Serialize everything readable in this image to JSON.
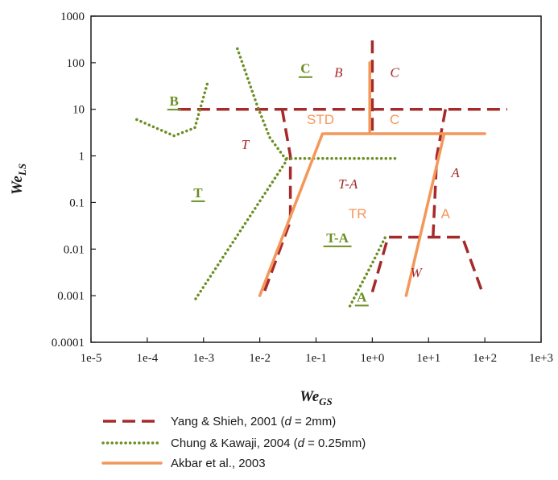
{
  "chart_data": {
    "type": "line",
    "xlabel": "We",
    "xlabel_sub": "GS",
    "ylabel": "We",
    "ylabel_sub": "LS",
    "xscale": "log",
    "yscale": "log",
    "xlim": [
      1e-05,
      1000
    ],
    "ylim": [
      0.0001,
      1000
    ],
    "x_ticks": [
      "1e-5",
      "1e-4",
      "1e-3",
      "1e-2",
      "1e-1",
      "1e+0",
      "1e+1",
      "1e+2",
      "1e+3"
    ],
    "y_ticks": [
      "0.0001",
      "0.001",
      "0.01",
      "0.1",
      "1",
      "10",
      "100",
      "1000"
    ],
    "grid": false,
    "legend_position": "bottom",
    "colors": {
      "yang": "#a52a2a",
      "chung": "#6b8e23",
      "akbar": "#f4975a",
      "axis": "#1a1a1a"
    },
    "series": [
      {
        "name": "Yang & Shieh, 2001 (d = 2mm)",
        "style": "dashed",
        "segments": [
          [
            [
              0.00035,
              10
            ],
            [
              250,
              10
            ]
          ],
          [
            [
              1.0,
              300
            ],
            [
              1.0,
              3
            ]
          ],
          [
            [
              0.025,
              10
            ],
            [
              0.035,
              1
            ],
            [
              0.035,
              0.04
            ],
            [
              0.012,
              0.0012
            ]
          ],
          [
            [
              20,
              10
            ],
            [
              14,
              1
            ],
            [
              12,
              0.018
            ]
          ],
          [
            [
              1.0,
              0.0012
            ],
            [
              1.9,
              0.018
            ],
            [
              40,
              0.018
            ],
            [
              90,
              0.0012
            ]
          ]
        ]
      },
      {
        "name": "Chung & Kawaji, 2004 (d = 0.25mm)",
        "style": "dotted",
        "segments": [
          [
            [
              6.5e-05,
              6
            ],
            [
              0.0003,
              2.7
            ],
            [
              0.0007,
              4
            ],
            [
              0.0012,
              40
            ]
          ],
          [
            [
              0.004,
              200
            ],
            [
              0.009,
              12
            ],
            [
              0.015,
              2.5
            ],
            [
              0.03,
              0.8
            ],
            [
              0.0007,
              0.0008
            ]
          ],
          [
            [
              0.03,
              0.88
            ],
            [
              0.06,
              0.88
            ],
            [
              3.0,
              0.88
            ]
          ],
          [
            [
              0.4,
              0.0006
            ],
            [
              1.0,
              0.005
            ],
            [
              1.7,
              0.018
            ]
          ]
        ]
      },
      {
        "name": "Akbar et al., 2003",
        "style": "solid",
        "segments": [
          [
            [
              0.9,
              100
            ],
            [
              0.9,
              3
            ]
          ],
          [
            [
              0.14,
              3
            ],
            [
              100,
              3
            ]
          ],
          [
            [
              0.13,
              3
            ],
            [
              0.01,
              0.001
            ]
          ],
          [
            [
              19,
              3
            ],
            [
              4,
              0.001
            ]
          ]
        ]
      }
    ],
    "region_labels": [
      {
        "text": "B",
        "x": 0.0003,
        "y": 12,
        "series": "chung",
        "underline": true
      },
      {
        "text": "C",
        "x": 0.065,
        "y": 60,
        "series": "chung",
        "underline": true
      },
      {
        "text": "T",
        "x": 0.0008,
        "y": 0.13,
        "series": "chung",
        "underline": true
      },
      {
        "text": "T-A",
        "x": 0.24,
        "y": 0.014,
        "series": "chung",
        "underline": true
      },
      {
        "text": "A",
        "x": 0.65,
        "y": 0.00075,
        "series": "chung",
        "underline": true
      },
      {
        "text": "B",
        "x": 0.25,
        "y": 50,
        "series": "yang",
        "italic": true
      },
      {
        "text": "C",
        "x": 2.5,
        "y": 50,
        "series": "yang",
        "italic": true
      },
      {
        "text": "T",
        "x": 0.0055,
        "y": 1.4,
        "series": "yang",
        "italic": true
      },
      {
        "text": "T-A",
        "x": 0.37,
        "y": 0.2,
        "series": "yang",
        "italic": true
      },
      {
        "text": "A",
        "x": 30,
        "y": 0.35,
        "series": "yang",
        "italic": true
      },
      {
        "text": "W",
        "x": 6,
        "y": 0.0025,
        "series": "yang",
        "italic": true
      },
      {
        "text": "STD",
        "x": 0.12,
        "y": 4.8,
        "series": "akbar"
      },
      {
        "text": "C",
        "x": 2.5,
        "y": 4.8,
        "series": "akbar"
      },
      {
        "text": "TR",
        "x": 0.55,
        "y": 0.046,
        "series": "akbar"
      },
      {
        "text": "A",
        "x": 20,
        "y": 0.046,
        "series": "akbar"
      }
    ]
  },
  "legend": [
    {
      "label": "Yang & Shieh, 2001 (",
      "italic": "d",
      "rest": " = 2mm)",
      "series": "yang"
    },
    {
      "label": "Chung & Kawaji, 2004 (",
      "italic": "d",
      "rest": " = 0.25mm)",
      "series": "chung"
    },
    {
      "label": "Akbar et al., 2003",
      "italic": "",
      "rest": "",
      "series": "akbar"
    }
  ]
}
